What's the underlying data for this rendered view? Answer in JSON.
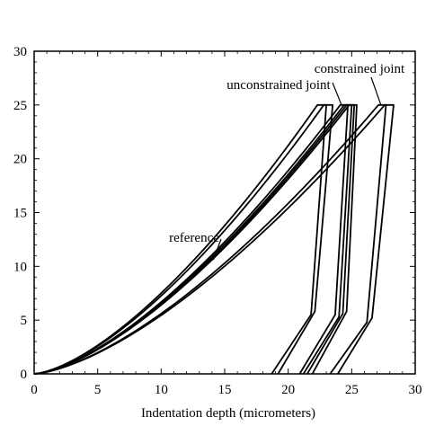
{
  "chart_data": {
    "type": "line",
    "xlabel": "Indentation depth (micrometers)",
    "ylabel": "",
    "xlim": [
      0,
      30
    ],
    "ylim": [
      0,
      30
    ],
    "x_ticks": [
      0,
      5,
      10,
      15,
      20,
      25,
      30
    ],
    "y_ticks": [
      0,
      5,
      10,
      15,
      20,
      25,
      30
    ],
    "x_tick_labels": [
      "0",
      "5",
      "10",
      "15",
      "20",
      "25",
      "30"
    ],
    "y_tick_labels": [
      "0",
      "5",
      "10",
      "15",
      "20",
      "25",
      "30"
    ],
    "grid": false,
    "legend": "none",
    "annotations": [
      {
        "text": "constrained joint",
        "target_x": 27.3,
        "target_y": 25
      },
      {
        "text": "unconstrained joint",
        "target_x": 24.2,
        "target_y": 25
      },
      {
        "text": "reference",
        "target_x": 14.1,
        "target_y": 10.6
      }
    ],
    "series": [
      {
        "max_depth": 22.3,
        "hold_depth": 23.0,
        "peak_load": 25,
        "knee_depth": 21.8,
        "knee_load": 5.5,
        "residual_depth": 18.7
      },
      {
        "max_depth": 22.8,
        "hold_depth": 23.5,
        "peak_load": 25,
        "knee_depth": 22.1,
        "knee_load": 5.8,
        "residual_depth": 19.2
      },
      {
        "max_depth": 24.1,
        "hold_depth": 24.7,
        "peak_load": 25,
        "knee_depth": 23.7,
        "knee_load": 5.5,
        "residual_depth": 20.9
      },
      {
        "max_depth": 24.4,
        "hold_depth": 25.0,
        "peak_load": 25,
        "knee_depth": 24.0,
        "knee_load": 5.3,
        "residual_depth": 21.2
      },
      {
        "max_depth": 24.6,
        "hold_depth": 25.2,
        "peak_load": 25,
        "knee_depth": 24.3,
        "knee_load": 5.6,
        "residual_depth": 21.5
      },
      {
        "max_depth": 24.8,
        "hold_depth": 25.4,
        "peak_load": 25,
        "knee_depth": 24.6,
        "knee_load": 5.8,
        "residual_depth": 21.9
      },
      {
        "max_depth": 27.1,
        "hold_depth": 27.7,
        "peak_load": 25,
        "knee_depth": 26.2,
        "knee_load": 4.8,
        "residual_depth": 23.3
      },
      {
        "max_depth": 27.6,
        "hold_depth": 28.3,
        "peak_load": 25,
        "knee_depth": 26.6,
        "knee_load": 5.2,
        "residual_depth": 23.9
      }
    ]
  }
}
